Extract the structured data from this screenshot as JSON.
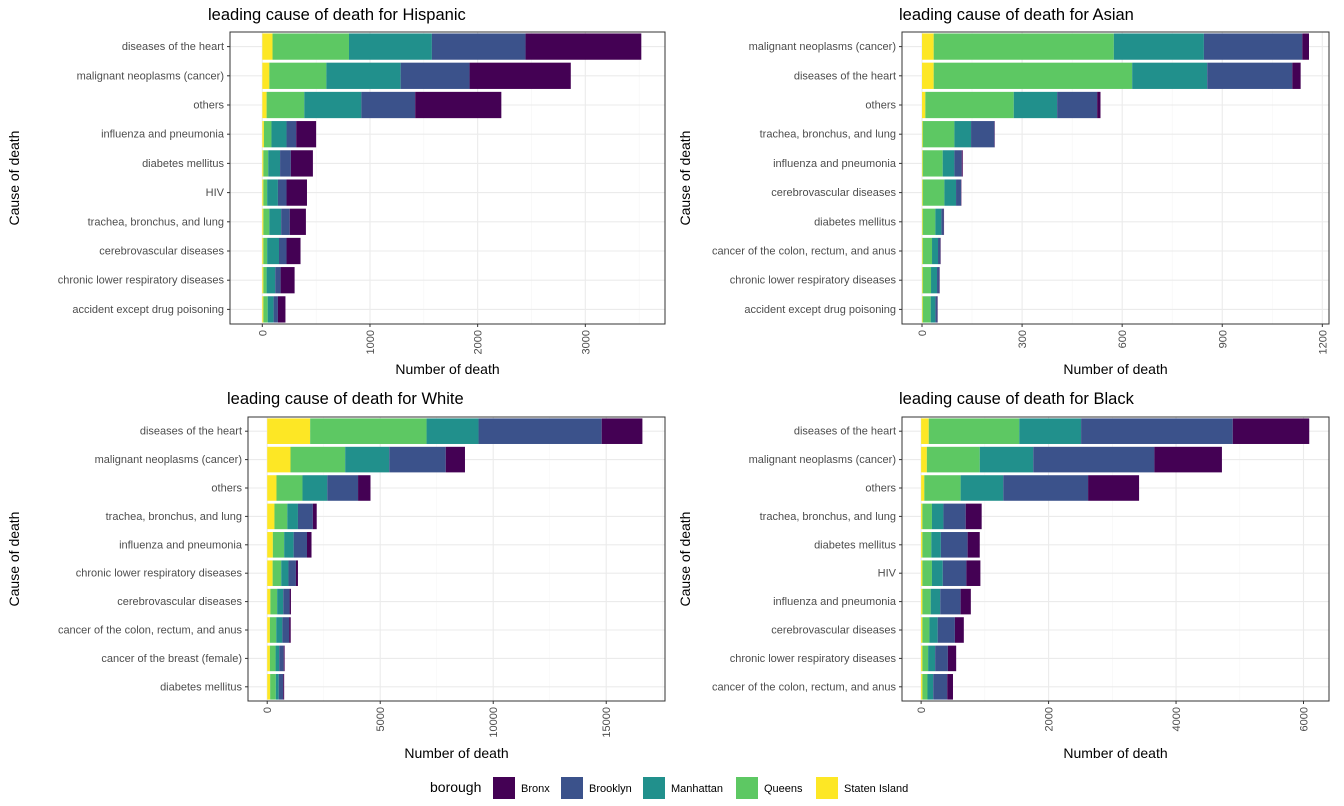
{
  "legend": {
    "title": "borough",
    "keys": [
      "Bronx",
      "Brooklyn",
      "Manhattan",
      "Queens",
      "Staten Island"
    ]
  },
  "colors": {
    "Bronx": "#440154",
    "Brooklyn": "#3B528B",
    "Manhattan": "#21908C",
    "Queens": "#5DC863",
    "Staten Island": "#FDE725",
    "panel_border": "#333333",
    "grid_major": "#EBEBEB",
    "grid_minor": "#F5F5F5"
  },
  "chart_data": [
    {
      "type": "bar",
      "orientation": "horizontal",
      "stacked": true,
      "title": "leading cause of death for Hispanic",
      "xlabel": "Number of death",
      "ylabel": "Cause of death",
      "xlim": [
        -300,
        3740
      ],
      "xticks": [
        0,
        1000,
        2000,
        3000
      ],
      "categories": [
        "diseases of the heart",
        "malignant neoplasms (cancer)",
        "others",
        "influenza and pneumonia",
        "diabetes mellitus",
        "HIV",
        "trachea, bronchus, and lung",
        "cerebrovascular diseases",
        "chronic lower respiratory diseases",
        "accident except drug poisoning"
      ],
      "series": [
        {
          "name": "Staten Island",
          "values": [
            95,
            65,
            40,
            15,
            10,
            10,
            10,
            10,
            10,
            10
          ]
        },
        {
          "name": "Queens",
          "values": [
            710,
            530,
            350,
            70,
            45,
            35,
            55,
            35,
            30,
            40
          ]
        },
        {
          "name": "Manhattan",
          "values": [
            770,
            690,
            530,
            140,
            110,
            100,
            110,
            110,
            80,
            55
          ]
        },
        {
          "name": "Brooklyn",
          "values": [
            870,
            640,
            500,
            90,
            100,
            80,
            80,
            70,
            50,
            40
          ]
        },
        {
          "name": "Bronx",
          "values": [
            1075,
            940,
            800,
            185,
            205,
            190,
            150,
            130,
            130,
            70
          ]
        }
      ]
    },
    {
      "type": "bar",
      "orientation": "horizontal",
      "stacked": true,
      "title": "leading cause of death for Asian",
      "xlabel": "Number of death",
      "ylabel": "Cause of death",
      "xlim": [
        -60,
        1220
      ],
      "xticks": [
        0,
        300,
        600,
        900,
        1200
      ],
      "categories": [
        "malignant neoplasms (cancer)",
        "diseases of the heart",
        "others",
        "trachea, bronchus, and lung",
        "influenza and pneumonia",
        "cerebrovascular diseases",
        "diabetes mellitus",
        "cancer of the colon, rectum, and anus",
        "chronic lower respiratory diseases",
        "accident except drug poisoning"
      ],
      "series": [
        {
          "name": "Staten Island",
          "values": [
            35,
            35,
            10,
            2,
            2,
            2,
            2,
            2,
            2,
            2
          ]
        },
        {
          "name": "Queens",
          "values": [
            540,
            595,
            265,
            95,
            60,
            65,
            38,
            28,
            25,
            24
          ]
        },
        {
          "name": "Manhattan",
          "values": [
            270,
            225,
            130,
            50,
            35,
            35,
            18,
            18,
            18,
            14
          ]
        },
        {
          "name": "Brooklyn",
          "values": [
            295,
            255,
            120,
            70,
            22,
            15,
            7,
            7,
            7,
            6
          ]
        },
        {
          "name": "Bronx",
          "values": [
            20,
            25,
            10,
            1,
            3,
            1,
            1,
            1,
            1,
            1
          ]
        }
      ]
    },
    {
      "type": "bar",
      "orientation": "horizontal",
      "stacked": true,
      "title": "leading cause of death for White",
      "xlabel": "Number of death",
      "ylabel": "Cause of death",
      "xlim": [
        -850,
        17600
      ],
      "xticks": [
        0,
        5000,
        10000,
        15000
      ],
      "categories": [
        "diseases of the heart",
        "malignant neoplasms (cancer)",
        "others",
        "trachea, bronchus, and lung",
        "influenza and pneumonia",
        "chronic lower respiratory diseases",
        "cerebrovascular diseases",
        "cancer of the colon, rectum, and anus",
        "cancer of the breast (female)",
        "diabetes mellitus"
      ],
      "series": [
        {
          "name": "Staten Island",
          "values": [
            1900,
            1030,
            410,
            320,
            250,
            240,
            140,
            120,
            120,
            130
          ]
        },
        {
          "name": "Queens",
          "values": [
            5150,
            2420,
            1150,
            570,
            500,
            380,
            300,
            280,
            250,
            250
          ]
        },
        {
          "name": "Manhattan",
          "values": [
            2300,
            1950,
            1100,
            470,
            420,
            320,
            270,
            270,
            160,
            130
          ]
        },
        {
          "name": "Brooklyn",
          "values": [
            5450,
            2500,
            1360,
            660,
            590,
            330,
            280,
            300,
            200,
            200
          ]
        },
        {
          "name": "Bronx",
          "values": [
            1800,
            850,
            550,
            170,
            200,
            90,
            60,
            70,
            40,
            40
          ]
        }
      ]
    },
    {
      "type": "bar",
      "orientation": "horizontal",
      "stacked": true,
      "title": "leading cause of death for Black",
      "xlabel": "Number of death",
      "ylabel": "Cause of death",
      "xlim": [
        -300,
        6400
      ],
      "xticks": [
        0,
        2000,
        4000,
        6000
      ],
      "categories": [
        "diseases of the heart",
        "malignant neoplasms (cancer)",
        "others",
        "trachea, bronchus, and lung",
        "diabetes mellitus",
        "HIV",
        "influenza and pneumonia",
        "cerebrovascular diseases",
        "chronic lower respiratory diseases",
        "cancer of the colon, rectum, and anus"
      ],
      "series": [
        {
          "name": "Staten Island",
          "values": [
            120,
            90,
            50,
            20,
            20,
            20,
            20,
            20,
            20,
            20
          ]
        },
        {
          "name": "Queens",
          "values": [
            1420,
            830,
            570,
            150,
            140,
            150,
            130,
            110,
            90,
            80
          ]
        },
        {
          "name": "Manhattan",
          "values": [
            970,
            840,
            670,
            180,
            150,
            170,
            150,
            130,
            110,
            90
          ]
        },
        {
          "name": "Brooklyn",
          "values": [
            2380,
            1900,
            1330,
            350,
            420,
            370,
            320,
            270,
            200,
            220
          ]
        },
        {
          "name": "Bronx",
          "values": [
            1200,
            1060,
            800,
            250,
            190,
            220,
            160,
            140,
            130,
            90
          ]
        }
      ]
    }
  ]
}
